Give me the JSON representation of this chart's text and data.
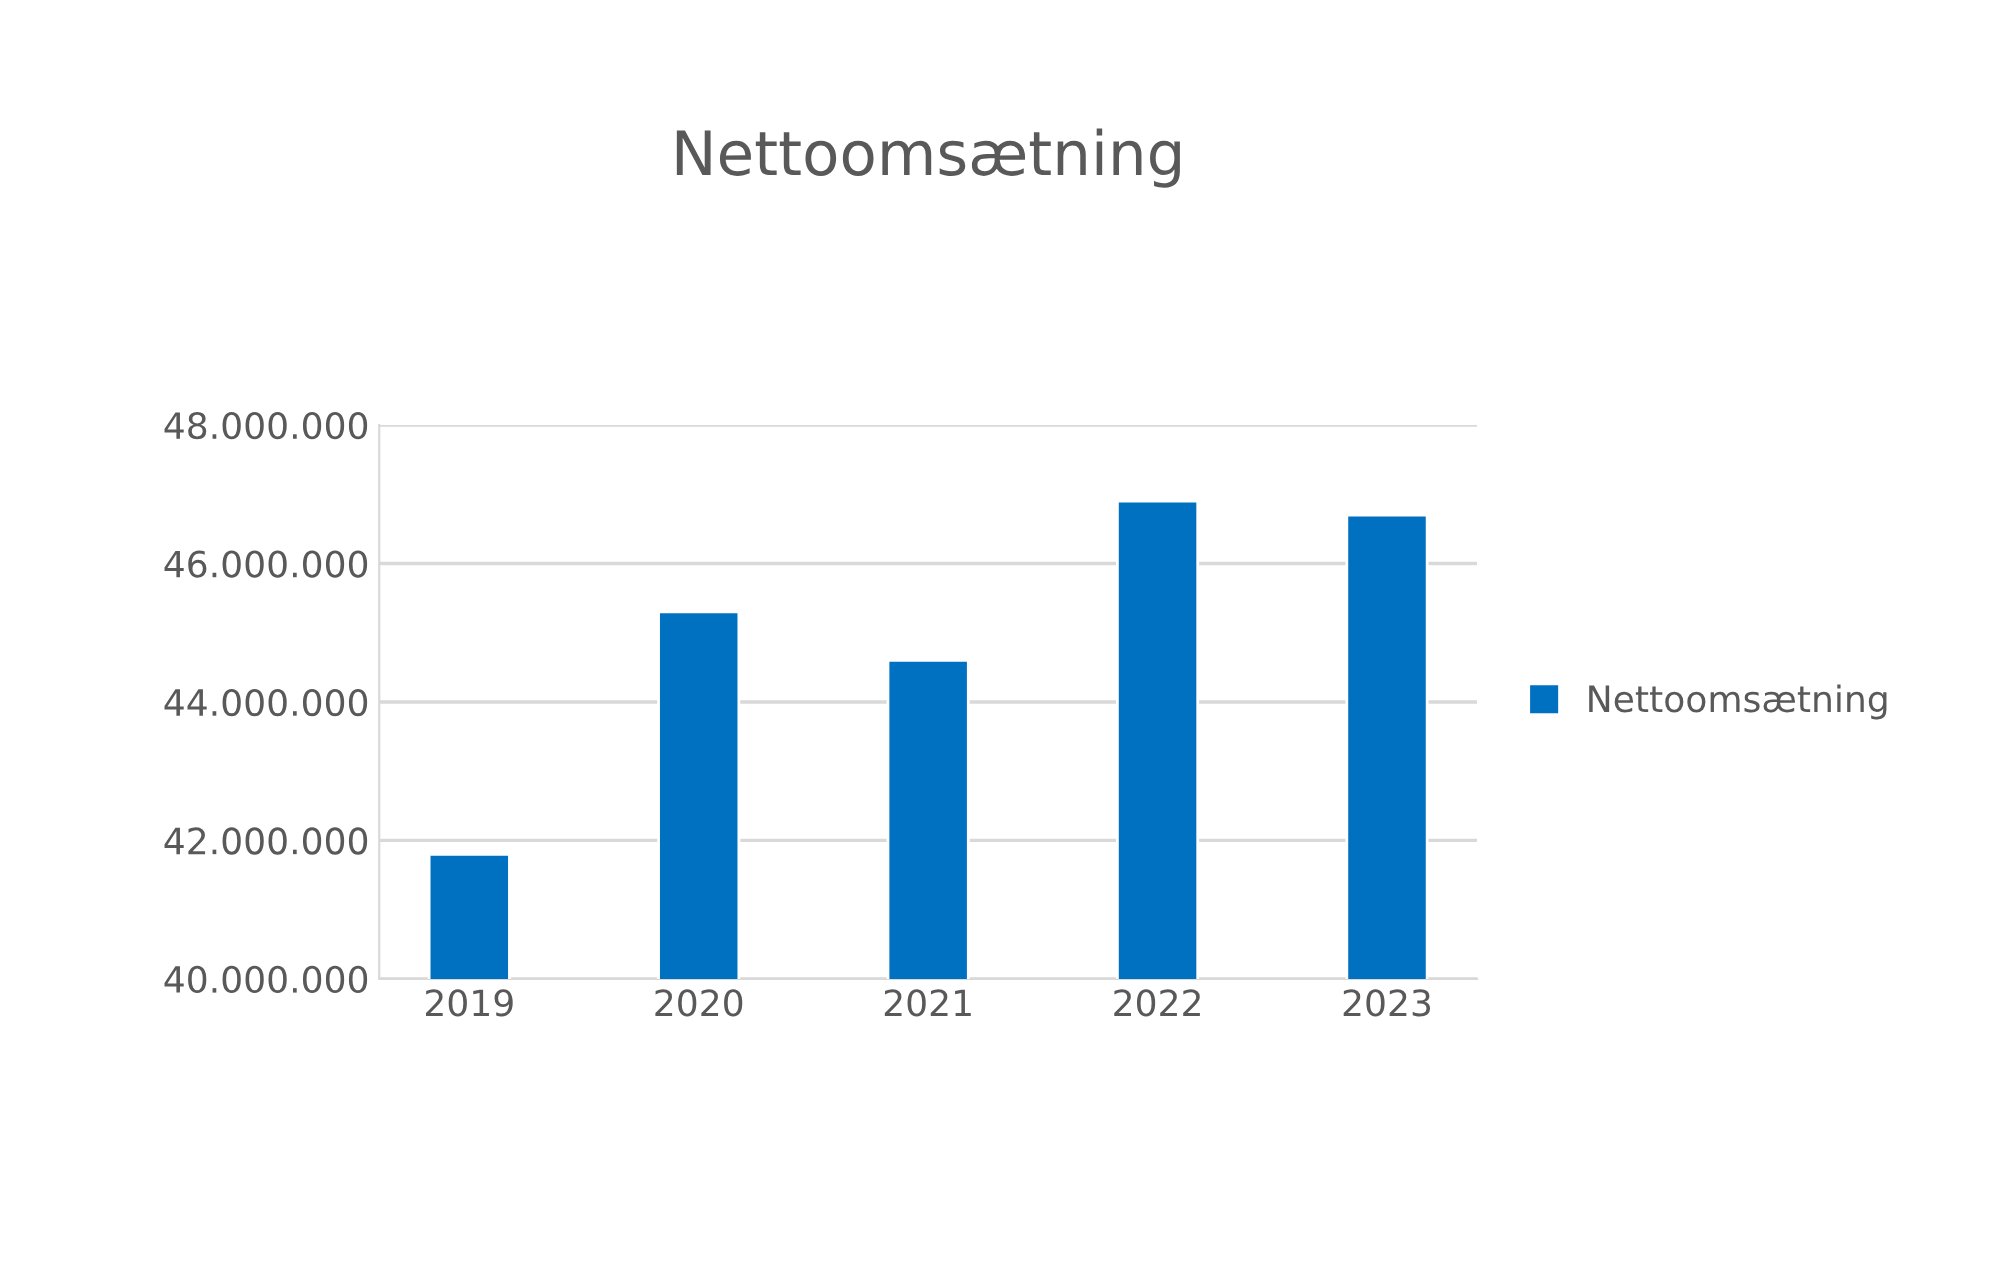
{
  "chart_data": {
    "type": "bar",
    "title": "Nettoomsætning",
    "categories": [
      "2019",
      "2020",
      "2021",
      "2022",
      "2023"
    ],
    "series": [
      {
        "name": "Nettoomsætning",
        "color": "#0070c0",
        "values": [
          41800000,
          45300000,
          44600000,
          46900000,
          46700000
        ]
      }
    ],
    "ylim": [
      40000000,
      48000000
    ],
    "yticks": [
      {
        "value": 40000000,
        "label": "40.000.000"
      },
      {
        "value": 42000000,
        "label": "42.000.000"
      },
      {
        "value": 44000000,
        "label": "44.000.000"
      },
      {
        "value": 46000000,
        "label": "46.000.000"
      },
      {
        "value": 48000000,
        "label": "48.000.000"
      }
    ],
    "grid": "y",
    "legend": "right"
  }
}
